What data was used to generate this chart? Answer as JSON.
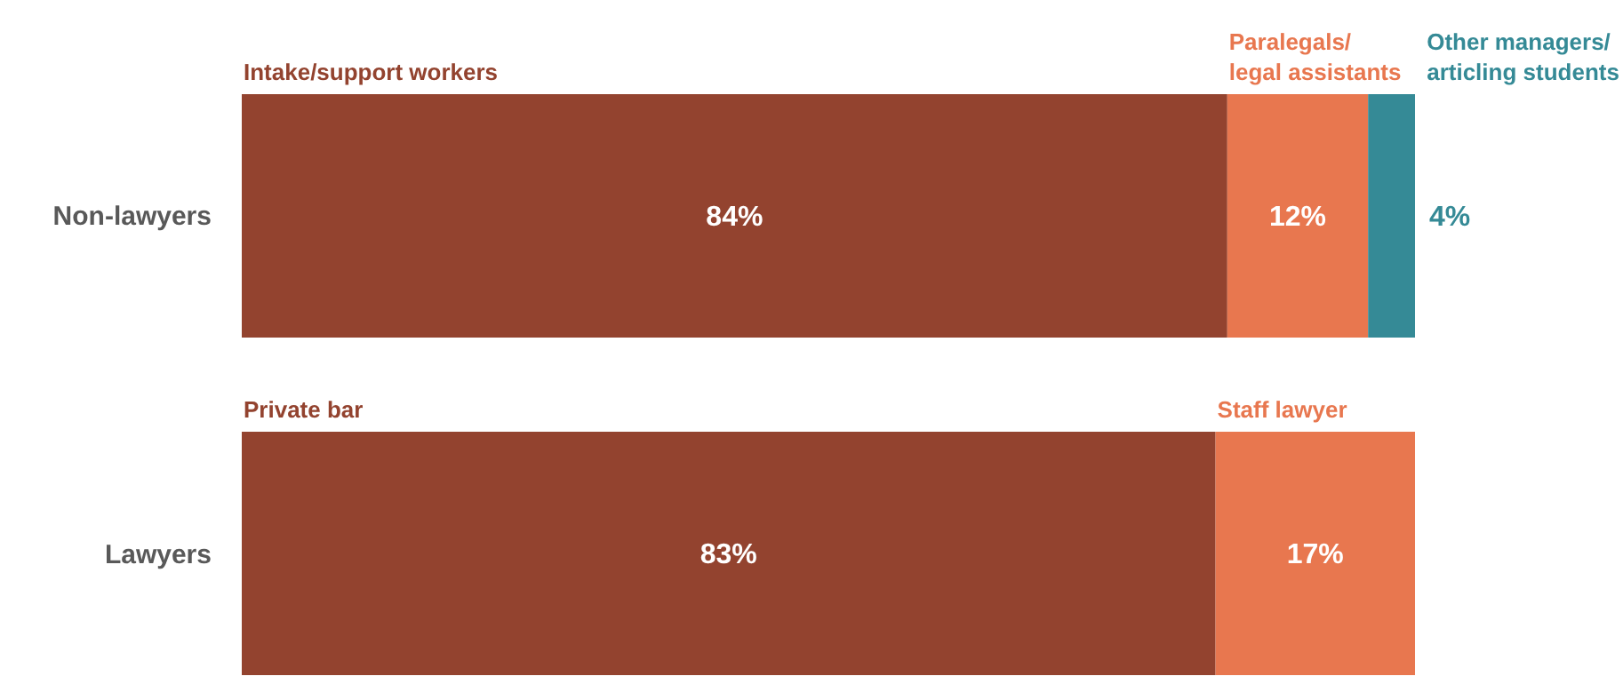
{
  "chart_data": {
    "type": "bar",
    "orientation": "horizontal",
    "stacked": true,
    "categories": [
      "Non-lawyers",
      "Lawyers"
    ],
    "series": [
      {
        "name": "Intake/support workers",
        "color": "#93432f",
        "values": [
          84,
          null
        ],
        "value_labels": [
          "84%",
          null
        ]
      },
      {
        "name": "Paralegals/ legal assistants",
        "color": "#e8774f",
        "values": [
          12,
          null
        ],
        "value_labels": [
          "12%",
          null
        ]
      },
      {
        "name": "Other managers/ articling students",
        "color": "#358a96",
        "values": [
          4,
          null
        ],
        "value_labels": [
          "4%",
          null
        ]
      },
      {
        "name": "Private bar",
        "color": "#93432f",
        "values": [
          null,
          83
        ],
        "value_labels": [
          null,
          "83%"
        ]
      },
      {
        "name": "Staff lawyer",
        "color": "#e8774f",
        "values": [
          null,
          17
        ],
        "value_labels": [
          null,
          "17%"
        ]
      }
    ]
  }
}
